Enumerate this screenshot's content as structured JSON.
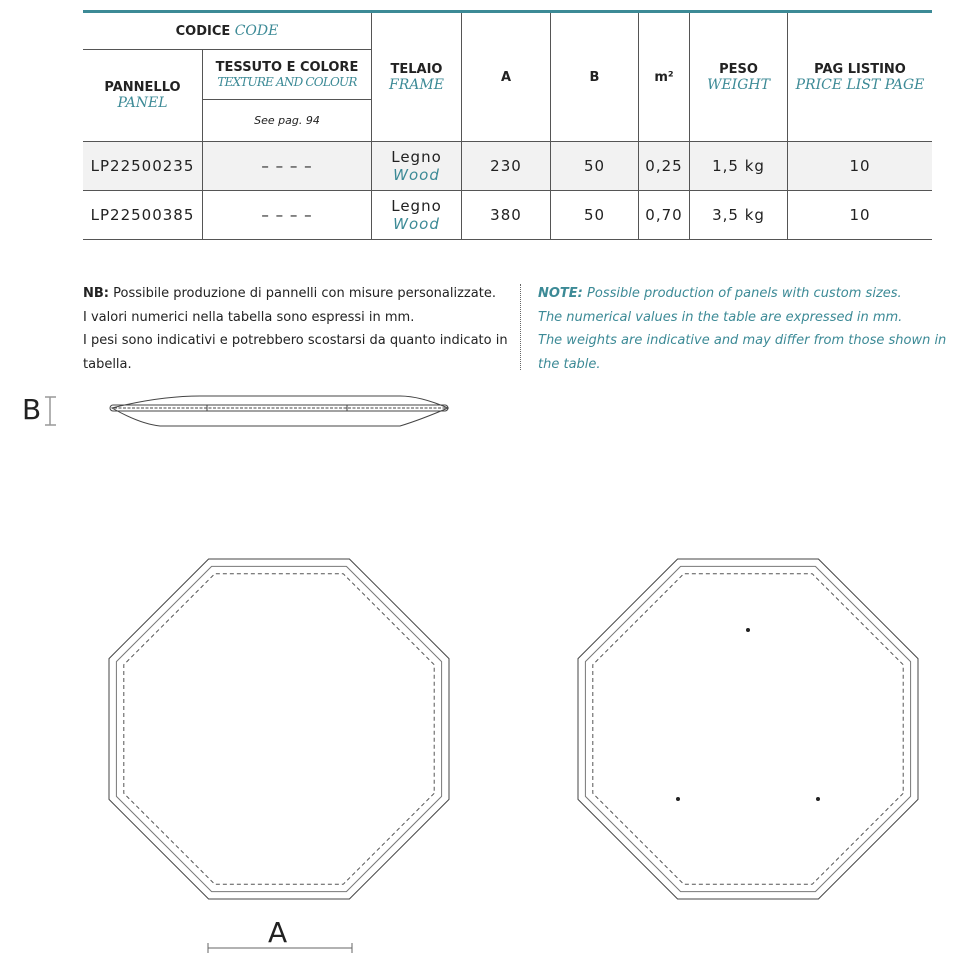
{
  "table": {
    "codice": "CODICE",
    "codice_en": "CODE",
    "pannello": "PANNELLO",
    "pannello_en": "PANEL",
    "tessuto": "TESSUTO E COLORE",
    "tessuto_en": "TEXTURE AND COLOUR",
    "see_page": "See pag. 94",
    "telaio": "TELAIO",
    "telaio_en": "FRAME",
    "a": "A",
    "b": "B",
    "m2": "m²",
    "peso": "PESO",
    "peso_en": "WEIGHT",
    "pag": "PAG LISTINO",
    "pag_en": "PRICE LIST PAGE",
    "rows": [
      {
        "code": "LP22500235",
        "tessuto": "– – – –",
        "frame": "Legno",
        "frame_en": "Wood",
        "a": "230",
        "b": "50",
        "m2": "0,25",
        "weight": "1,5 kg",
        "page": "10"
      },
      {
        "code": "LP22500385",
        "tessuto": "– – – –",
        "frame": "Legno",
        "frame_en": "Wood",
        "a": "380",
        "b": "50",
        "m2": "0,70",
        "weight": "3,5 kg",
        "page": "10"
      }
    ]
  },
  "notes": {
    "it_label": "NB:",
    "it_lines": [
      "Possibile produzione di pannelli con misure personalizzate.",
      "I valori numerici nella tabella sono espressi in mm.",
      "I pesi sono indicativi e potrebbero scostarsi da quanto indicato in tabella."
    ],
    "en_label": "NOTE:",
    "en_lines": [
      "Possible production of panels with custom sizes.",
      "The numerical values in the table are expressed in mm.",
      "The weights are indicative and may differ from those shown in the table."
    ]
  },
  "drawing": {
    "label_b": "B",
    "label_a": "A"
  }
}
